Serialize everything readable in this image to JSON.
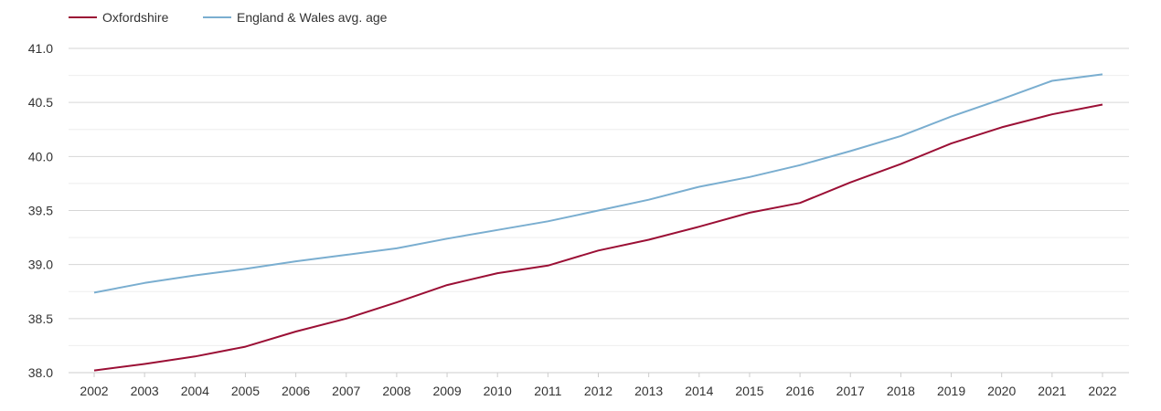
{
  "chart_data": {
    "type": "line",
    "title": "",
    "xlabel": "",
    "ylabel": "",
    "x": [
      "2002",
      "2003",
      "2004",
      "2005",
      "2006",
      "2007",
      "2008",
      "2009",
      "2010",
      "2011",
      "2012",
      "2013",
      "2014",
      "2015",
      "2016",
      "2017",
      "2018",
      "2019",
      "2020",
      "2021",
      "2022"
    ],
    "ylim": [
      38.0,
      41.0
    ],
    "yticks": [
      "38.0",
      "38.5",
      "39.0",
      "39.5",
      "40.0",
      "40.5",
      "41.0"
    ],
    "grid": true,
    "legend_position": "top-left",
    "series": [
      {
        "name": "Oxfordshire",
        "color": "#9b0f35",
        "values": [
          38.02,
          38.08,
          38.15,
          38.24,
          38.38,
          38.5,
          38.65,
          38.81,
          38.92,
          38.99,
          39.13,
          39.23,
          39.35,
          39.48,
          39.57,
          39.76,
          39.93,
          40.12,
          40.27,
          40.39,
          40.48
        ]
      },
      {
        "name": "England & Wales avg. age",
        "color": "#7aaed0",
        "values": [
          38.74,
          38.83,
          38.9,
          38.96,
          39.03,
          39.09,
          39.15,
          39.24,
          39.32,
          39.4,
          39.5,
          39.6,
          39.72,
          39.81,
          39.92,
          40.05,
          40.19,
          40.37,
          40.53,
          40.7,
          40.76
        ]
      }
    ]
  }
}
